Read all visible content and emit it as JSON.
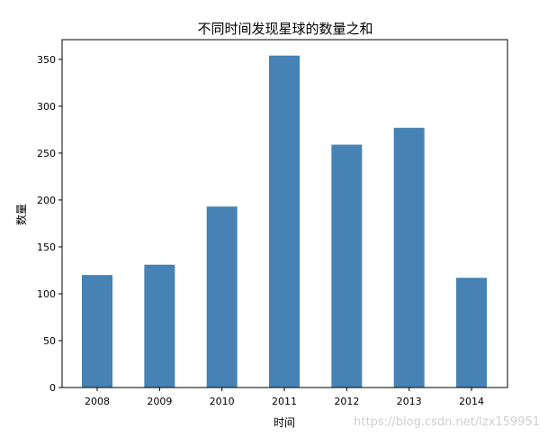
{
  "chart_data": {
    "type": "bar",
    "title": "不同时间发现星球的数量之和",
    "xlabel": "时间",
    "ylabel": "数量",
    "categories": [
      "2008",
      "2009",
      "2010",
      "2011",
      "2012",
      "2013",
      "2014"
    ],
    "values": [
      120,
      131,
      193,
      354,
      259,
      277,
      117
    ],
    "ylim": [
      0,
      371
    ],
    "yticks": [
      0,
      50,
      100,
      150,
      200,
      250,
      300,
      350
    ],
    "bar_color": "#4682b4",
    "grid": false,
    "legend": "none"
  },
  "watermark": "https://blog.csdn.net/lzx159951"
}
